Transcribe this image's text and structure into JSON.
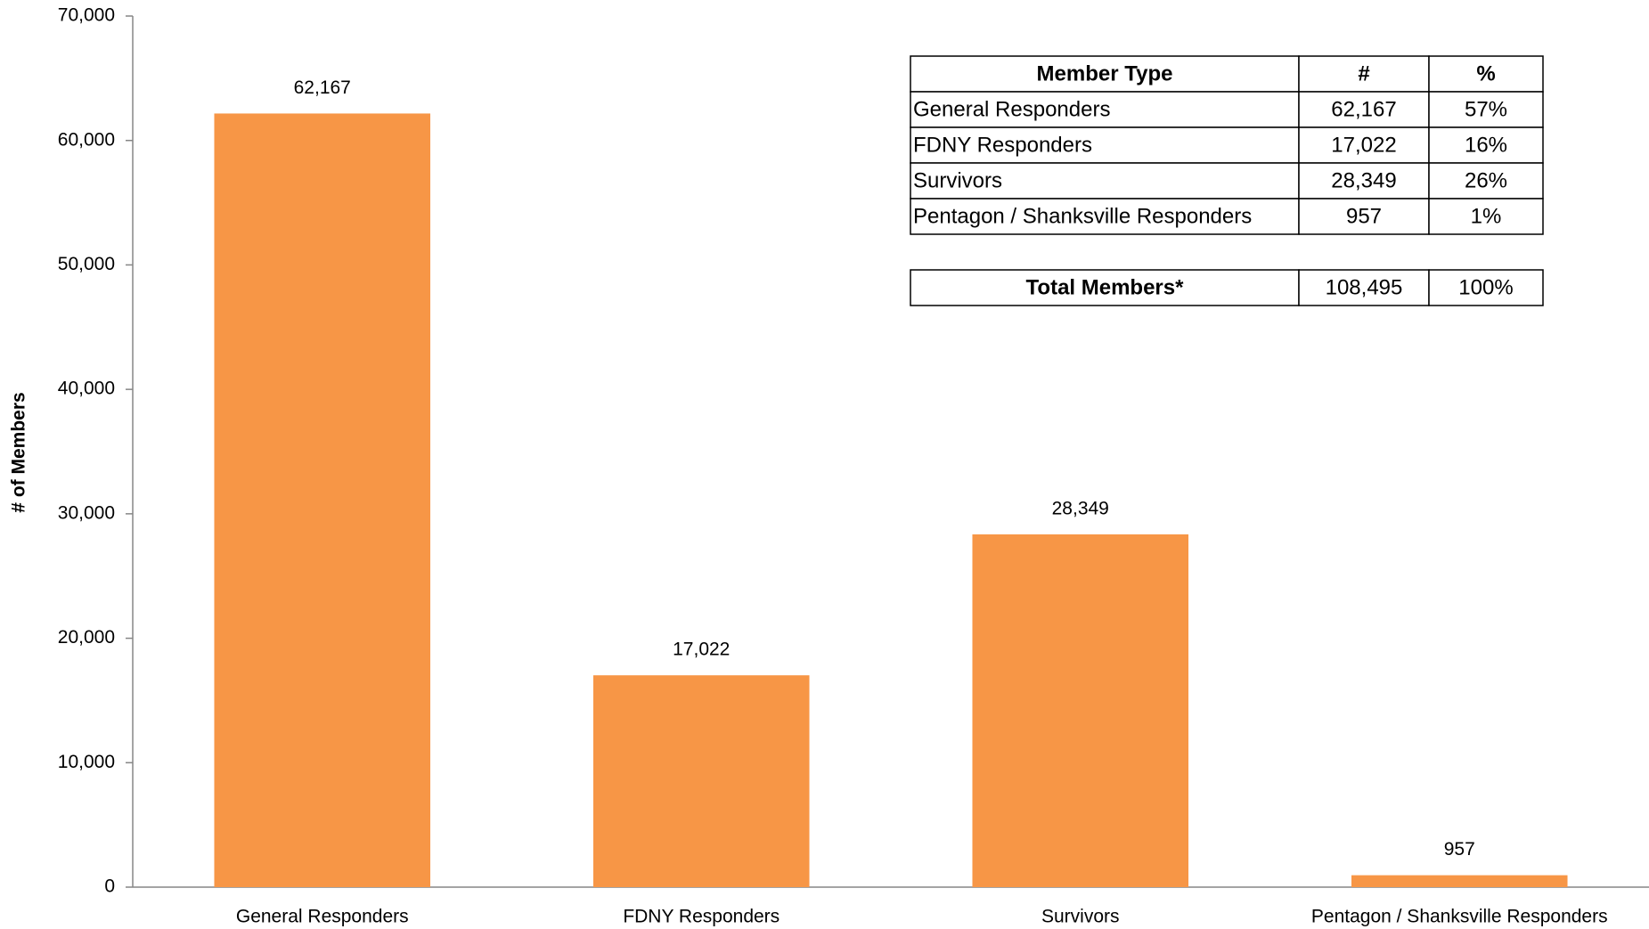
{
  "chart_data": {
    "type": "bar",
    "ylabel": "# of Members",
    "categories": [
      "General Responders",
      "FDNY Responders",
      "Survivors",
      "Pentagon / Shanksville Responders"
    ],
    "values": [
      62167,
      17022,
      28349,
      957
    ],
    "value_labels": [
      "62,167",
      "17,022",
      "28,349",
      "957"
    ],
    "color": "#f79646",
    "ylim": [
      0,
      70000
    ],
    "yticks": [
      0,
      {
        "value": 10000,
        "label": "10,000"
      },
      {
        "value": 20000,
        "label": "20,000"
      },
      {
        "value": 30000,
        "label": "30,000"
      },
      {
        "value": 40000,
        "label": "40,000"
      },
      {
        "value": 50000,
        "label": "50,000"
      },
      {
        "value": 60000,
        "label": "60,000"
      },
      {
        "value": 70000,
        "label": "70,000"
      }
    ],
    "grid": false,
    "table": {
      "header": [
        "Member Type",
        "#",
        "%"
      ],
      "rows": [
        [
          "General Responders",
          "62,167",
          "57%"
        ],
        [
          "FDNY Responders",
          "17,022",
          "16%"
        ],
        [
          "Survivors",
          "28,349",
          "26%"
        ],
        [
          "Pentagon / Shanksville Responders",
          "957",
          "1%"
        ]
      ],
      "total": [
        "Total Members*",
        "108,495",
        "100%"
      ]
    }
  }
}
